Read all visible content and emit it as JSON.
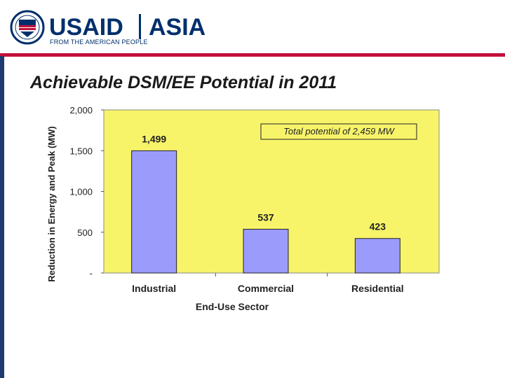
{
  "header": {
    "logo_name": "USAID",
    "region": "ASIA",
    "tagline": "FROM THE AMERICAN PEOPLE",
    "brand_color": "#002f6c",
    "accent_color": "#c2113a",
    "logo_icon": "usaid-seal-icon"
  },
  "slide": {
    "title": "Achievable DSM/EE Potential in 2011"
  },
  "chart_data": {
    "type": "bar",
    "categories": [
      "Industrial",
      "Commercial",
      "Residential"
    ],
    "values": [
      1499,
      537,
      423
    ],
    "value_labels": [
      "1,499",
      "537",
      "423"
    ],
    "xlabel": "End-Use Sector",
    "ylabel": "Reduction in Energy and Peak (MW)",
    "ylim": [
      0,
      2000
    ],
    "yticks": [
      0,
      500,
      1000,
      1500,
      2000
    ],
    "ytick_labels": [
      "-",
      "500",
      "1,000",
      "1,500",
      "2,000"
    ],
    "annotation": "Total potential of 2,459 MW",
    "grid": false,
    "legend": "none",
    "plot_background": "#f7f46a",
    "bar_color": "#9b9bfc"
  }
}
